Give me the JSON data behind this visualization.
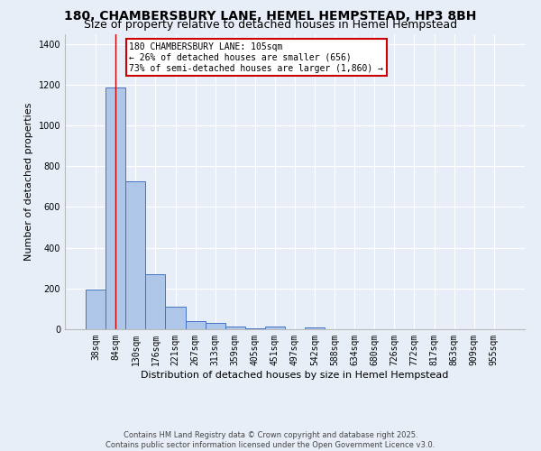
{
  "title": "180, CHAMBERSBURY LANE, HEMEL HEMPSTEAD, HP3 8BH",
  "subtitle": "Size of property relative to detached houses in Hemel Hempstead",
  "xlabel": "Distribution of detached houses by size in Hemel Hempstead",
  "ylabel": "Number of detached properties",
  "bin_labels": [
    "38sqm",
    "84sqm",
    "130sqm",
    "176sqm",
    "221sqm",
    "267sqm",
    "313sqm",
    "359sqm",
    "405sqm",
    "451sqm",
    "497sqm",
    "542sqm",
    "588sqm",
    "634sqm",
    "680sqm",
    "726sqm",
    "772sqm",
    "817sqm",
    "863sqm",
    "909sqm",
    "955sqm"
  ],
  "bar_values": [
    193,
    1185,
    728,
    272,
    110,
    38,
    32,
    14,
    5,
    12,
    0,
    10,
    0,
    0,
    0,
    0,
    0,
    0,
    0,
    0,
    0
  ],
  "bar_color": "#aec6e8",
  "bar_edge_color": "#4472c4",
  "red_line_x": 1,
  "annotation_text": "180 CHAMBERSBURY LANE: 105sqm\n← 26% of detached houses are smaller (656)\n73% of semi-detached houses are larger (1,860) →",
  "annotation_box_color": "#ffffff",
  "annotation_box_edge": "#cc0000",
  "footer_text": "Contains HM Land Registry data © Crown copyright and database right 2025.\nContains public sector information licensed under the Open Government Licence v3.0.",
  "background_color": "#e8eef8",
  "grid_color": "#ffffff",
  "ylim": [
    0,
    1450
  ],
  "title_fontsize": 10,
  "subtitle_fontsize": 9,
  "axis_label_fontsize": 8,
  "tick_fontsize": 7,
  "footer_fontsize": 6,
  "annotation_fontsize": 7
}
